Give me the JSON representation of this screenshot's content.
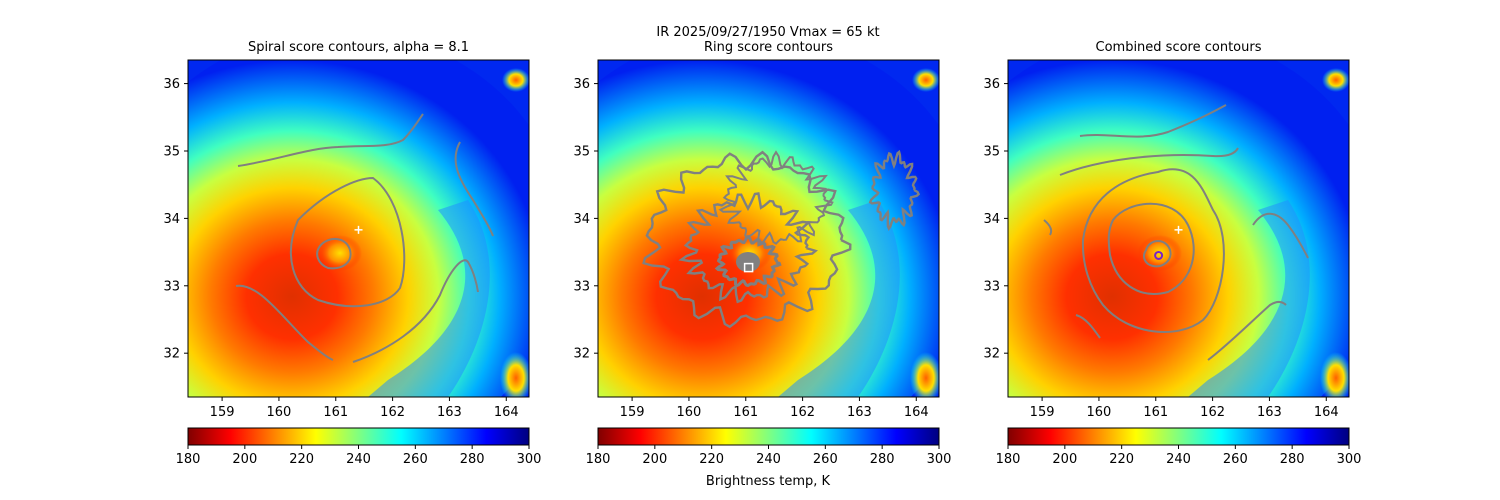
{
  "figure": {
    "suptitle": "IR  2025/09/27/1950    Vmax = 65 kt",
    "colorbar_label": "Brightness temp, K"
  },
  "colors": {
    "contour": "#808080",
    "center_marker": "#ffffff",
    "combined_marker": "#7a22c8",
    "colormap_stops": [
      "#800000",
      "#ff0000",
      "#ff8000",
      "#ffff00",
      "#80ff80",
      "#00ffff",
      "#0080ff",
      "#0000ff",
      "#000080"
    ]
  },
  "chart_data": [
    {
      "type": "heatmap",
      "title": "Spiral score contours, alpha =  8.1",
      "x_ticks": [
        159,
        160,
        161,
        162,
        163,
        164
      ],
      "y_ticks": [
        32,
        33,
        34,
        35,
        36
      ],
      "xlim": [
        158.4,
        164.4
      ],
      "ylim": [
        31.35,
        36.35
      ],
      "colorbar": {
        "ticks": [
          180,
          200,
          220,
          240,
          260,
          280,
          300
        ],
        "range": [
          180,
          300
        ]
      },
      "marker": {
        "symbol": "plus",
        "lon": 161.4,
        "lat": 33.83
      }
    },
    {
      "type": "heatmap",
      "title": "Ring score contours",
      "x_ticks": [
        159,
        160,
        161,
        162,
        163,
        164
      ],
      "y_ticks": [
        32,
        33,
        34,
        35,
        36
      ],
      "xlim": [
        158.4,
        164.4
      ],
      "ylim": [
        31.35,
        36.35
      ],
      "colorbar": {
        "ticks": [
          180,
          200,
          220,
          240,
          260,
          280,
          300
        ],
        "range": [
          180,
          300
        ]
      },
      "marker": {
        "symbol": "square",
        "lon": 161.05,
        "lat": 33.27
      }
    },
    {
      "type": "heatmap",
      "title": "Combined score contours",
      "x_ticks": [
        159,
        160,
        161,
        162,
        163,
        164
      ],
      "y_ticks": [
        32,
        33,
        34,
        35,
        36
      ],
      "xlim": [
        158.4,
        164.4
      ],
      "ylim": [
        31.35,
        36.35
      ],
      "colorbar": {
        "ticks": [
          180,
          200,
          220,
          240,
          260,
          280,
          300
        ],
        "range": [
          180,
          300
        ]
      },
      "marker": {
        "symbol": "plus",
        "lon": 161.4,
        "lat": 33.83
      },
      "marker2": {
        "symbol": "circle",
        "lon": 161.05,
        "lat": 33.45
      }
    }
  ]
}
